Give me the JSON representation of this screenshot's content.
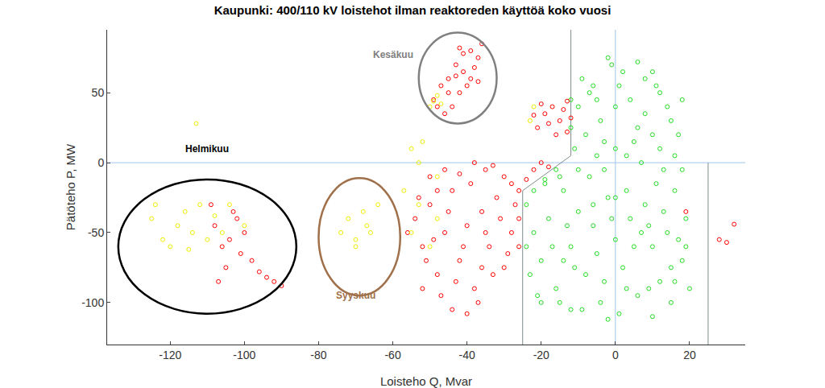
{
  "chart_data": {
    "type": "scatter",
    "title": "Kaupunki: 400/110 kV loistehot ilman reaktoreden käyttöä koko vuosi",
    "x_label": "Loisteho Q, Mvar",
    "y_label": "Pätöteho P, MW",
    "xlim": [
      -137,
      35
    ],
    "ylim": [
      -130,
      95
    ],
    "xticks": [
      -120,
      -100,
      -80,
      -60,
      -40,
      -20,
      0,
      20
    ],
    "yticks": [
      -100,
      -50,
      0,
      50
    ],
    "grid": false,
    "marker": "circle-open",
    "series": [
      {
        "color": "#22dd22",
        "x": [
          -24,
          -22,
          -20,
          -18,
          -16,
          -14,
          -12,
          -10,
          -8,
          -6,
          -4,
          -2,
          0,
          2,
          4,
          6,
          8,
          10,
          12,
          14,
          16,
          18,
          19,
          -23,
          -21,
          -19,
          -17,
          -15,
          -13,
          -11,
          -9,
          -7,
          -5,
          -3,
          -1,
          1,
          3,
          5,
          7,
          9,
          11,
          13,
          15,
          17,
          -24,
          -22,
          -10,
          -5,
          0,
          5,
          10,
          15,
          18,
          12,
          8,
          2,
          -2,
          -6,
          -10,
          -12,
          -8,
          -4,
          0,
          4,
          8,
          12,
          16,
          -11,
          -7,
          -3,
          1,
          6,
          10,
          14,
          17,
          -1,
          3,
          -9,
          -12,
          13,
          18,
          7,
          -3,
          -15,
          -16,
          20,
          15,
          10,
          -2,
          -12,
          -20,
          -19,
          19,
          6,
          -5,
          11,
          -6,
          3,
          -14,
          9,
          16,
          0
        ],
        "y": [
          -30,
          -50,
          -70,
          -40,
          -90,
          -20,
          -60,
          -35,
          -80,
          -45,
          -100,
          -25,
          -55,
          -75,
          -40,
          -95,
          -30,
          -60,
          -85,
          -50,
          -20,
          -70,
          -40,
          -80,
          -95,
          -15,
          -60,
          -100,
          -45,
          -75,
          -105,
          -10,
          -65,
          -85,
          -40,
          -108,
          -20,
          -60,
          -50,
          -90,
          -15,
          -35,
          -75,
          -55,
          -60,
          -20,
          -5,
          5,
          10,
          15,
          20,
          30,
          45,
          50,
          60,
          65,
          75,
          55,
          40,
          25,
          20,
          30,
          40,
          45,
          35,
          10,
          5,
          10,
          50,
          15,
          55,
          25,
          65,
          40,
          20,
          70,
          5,
          60,
          45,
          -5,
          -5,
          0,
          -5,
          -10,
          -5,
          -90,
          -100,
          -110,
          -112,
          -105,
          -100,
          -12,
          -60,
          72,
          45,
          55,
          -30,
          -90,
          -70,
          -45,
          -85,
          -25
        ]
      },
      {
        "color": "#ff0000",
        "x": [
          -54,
          -52,
          -50,
          -48,
          -46,
          -44,
          -42,
          -40,
          -38,
          -36,
          -34,
          -32,
          -30,
          -28,
          -26,
          -53,
          -51,
          -49,
          -47,
          -45,
          -43,
          -41,
          -39,
          -37,
          -35,
          -33,
          -31,
          -29,
          -27,
          -26,
          -50,
          -46,
          -42,
          -38,
          -35,
          -30,
          -28,
          -33,
          -26,
          -36,
          -44,
          -40,
          -52,
          -48,
          -56,
          -24,
          -22,
          -20,
          -18,
          -21,
          -19,
          -17,
          -15,
          -13,
          -20,
          -18,
          -14,
          -16,
          -12,
          -22,
          -13,
          -49,
          -47,
          -45,
          -43,
          -41,
          -39,
          -37,
          -42,
          -44,
          -40,
          -38,
          -36,
          -46,
          -43,
          -41,
          -45,
          -39,
          -48,
          -42,
          -37,
          -108,
          -106,
          -104,
          -102,
          -100,
          -98,
          -96,
          -94,
          -92,
          -90,
          -107,
          -105,
          -103,
          -109,
          -101,
          19,
          28,
          30,
          32
        ],
        "y": [
          -40,
          -60,
          -30,
          -80,
          -50,
          -20,
          -70,
          -45,
          -90,
          -35,
          -60,
          -25,
          -75,
          -50,
          -40,
          -25,
          -70,
          -55,
          -95,
          -35,
          -85,
          -60,
          -15,
          -100,
          -50,
          -80,
          -40,
          -65,
          -30,
          -60,
          -10,
          -5,
          -8,
          0,
          -5,
          -10,
          -15,
          -2,
          -20,
          -75,
          -105,
          -108,
          -90,
          -20,
          -50,
          -12,
          -5,
          0,
          -3,
          25,
          35,
          40,
          30,
          22,
          42,
          28,
          38,
          20,
          32,
          34,
          44,
          45,
          55,
          60,
          70,
          65,
          80,
          75,
          50,
          40,
          55,
          68,
          85,
          35,
          62,
          78,
          50,
          60,
          40,
          82,
          58,
          -45,
          -60,
          -55,
          -40,
          -50,
          -70,
          -78,
          -82,
          -85,
          -88,
          -85,
          -75,
          -35,
          -30,
          -65,
          -35,
          -55,
          -57,
          -44
        ]
      },
      {
        "color": "#eeee00",
        "x": [
          -125,
          -122,
          -120,
          -118,
          -116,
          -114,
          -112,
          -110,
          -108,
          -106,
          -104,
          -100,
          -124,
          -115,
          -113,
          -72,
          -70,
          -68,
          -66,
          -64,
          -70,
          -74,
          -67,
          -50,
          -49,
          -48,
          -47,
          -55,
          -53,
          -50,
          -55,
          -52,
          -48,
          -53,
          -57,
          -22,
          -23,
          -48
        ],
        "y": [
          -40,
          -55,
          -60,
          -45,
          -35,
          -50,
          -30,
          -55,
          -38,
          -50,
          -30,
          -45,
          -30,
          -62,
          28,
          -40,
          -55,
          -35,
          -50,
          -30,
          -60,
          -50,
          -45,
          40,
          44,
          48,
          42,
          -50,
          -30,
          -60,
          10,
          15,
          -10,
          0,
          -20,
          40,
          30,
          -40
        ]
      }
    ],
    "lines": [
      {
        "color": "#9fc5e8",
        "x": [
          -137,
          35
        ],
        "y": [
          0,
          0
        ]
      },
      {
        "color": "#9fc5e8",
        "x": [
          0,
          0
        ],
        "y": [
          -130,
          95
        ]
      },
      {
        "color": "#7f8c8d",
        "x": [
          -12,
          -12,
          -25,
          -25
        ],
        "y": [
          95,
          5,
          -20,
          -130
        ]
      },
      {
        "color": "#7f8c8d",
        "x": [
          25,
          25
        ],
        "y": [
          0,
          -130
        ]
      }
    ],
    "ellipses": [
      {
        "color": "#000000",
        "x": [
          -134,
          -86
        ],
        "y": [
          -108,
          -12
        ]
      },
      {
        "color": "#a0704a",
        "x": [
          -80,
          -58
        ],
        "y": [
          -95,
          -11
        ]
      },
      {
        "color": "#808080",
        "x": [
          -53,
          -32
        ],
        "y": [
          28,
          93
        ]
      }
    ],
    "annotations": [
      {
        "text": "Helmikuu",
        "x": -110,
        "y": 10,
        "color": "#000000"
      },
      {
        "text": "Syyskuu",
        "x": -70,
        "y": -95,
        "color": "#a0704a"
      },
      {
        "text": "Kesäkuu",
        "x": -60,
        "y": 77,
        "color": "#808080"
      }
    ]
  }
}
